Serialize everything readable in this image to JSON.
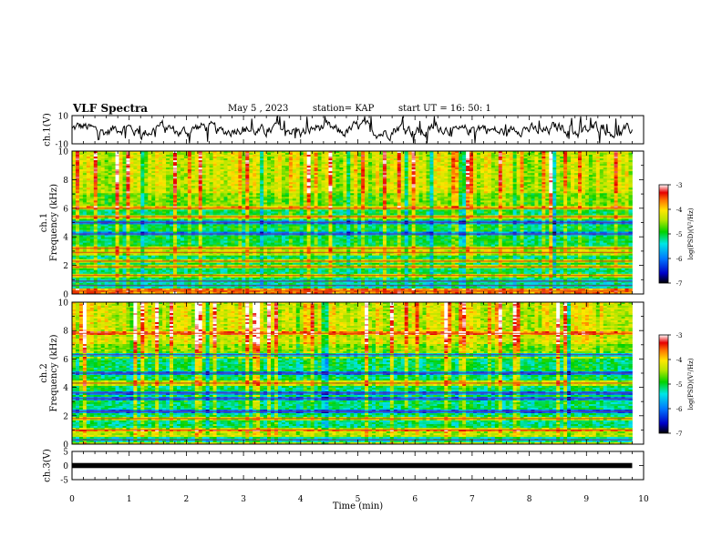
{
  "header": {
    "title": "VLF Spectra",
    "date": "May 5 , 2023",
    "station": "station= KAP",
    "start": "start UT = 16: 50: 1"
  },
  "chart_data": [
    {
      "type": "line",
      "name": "ch1-waveform",
      "ylabel": "ch.1(V)",
      "ylim": [
        -10,
        10
      ],
      "yticks": [
        10,
        -10
      ],
      "xlim": [
        0,
        10
      ],
      "trace_extent_min": 9.8
    },
    {
      "type": "heatmap",
      "name": "ch1-spectrogram",
      "ylabel_lines": [
        "ch.1",
        "Frequency (kHz)"
      ],
      "ylim": [
        0,
        10
      ],
      "yticks": [
        0,
        2,
        4,
        6,
        8,
        10
      ],
      "xlim": [
        0,
        10
      ],
      "data_extent_min": 9.8,
      "colorbar": {
        "label": "log(PSD)(V²/Hz)",
        "ticks": [
          "-3",
          "-4",
          "-5",
          "-6",
          "-7"
        ],
        "range": [
          -7,
          -3
        ]
      },
      "bands_khz": [
        0.2,
        0.6,
        0.9,
        1.3,
        1.9,
        2.3,
        2.9,
        3.2,
        4.2,
        5.0,
        5.4,
        6.0
      ]
    },
    {
      "type": "heatmap",
      "name": "ch2-spectrogram",
      "ylabel_lines": [
        "ch.2",
        "Frequency (kHz)"
      ],
      "ylim": [
        0,
        10
      ],
      "yticks": [
        0,
        2,
        4,
        6,
        8,
        10
      ],
      "xlim": [
        0,
        10
      ],
      "data_extent_min": 9.8,
      "colorbar": {
        "label": "log(PSD)(V²/Hz)",
        "ticks": [
          "-3",
          "-4",
          "-5",
          "-6",
          "-7"
        ],
        "range": [
          -7,
          -3
        ]
      },
      "bands_khz": [
        0.3,
        1.0,
        1.8,
        2.3,
        3.2,
        3.6,
        4.3,
        5.0,
        6.3,
        7.8
      ]
    },
    {
      "type": "line",
      "name": "ch3-waveform",
      "ylabel": "ch.3(V)",
      "ylim": [
        -5,
        5
      ],
      "yticks": [
        5,
        0,
        -5
      ],
      "xlim": [
        0,
        10
      ],
      "trace_extent_min": 9.8,
      "level_v": 0
    }
  ],
  "xaxis": {
    "label": "Time (min)",
    "ticks": [
      "0",
      "1",
      "2",
      "3",
      "4",
      "5",
      "6",
      "7",
      "8",
      "9",
      "10"
    ]
  },
  "colors": {
    "frame": "#000000",
    "trace": "#000000"
  }
}
